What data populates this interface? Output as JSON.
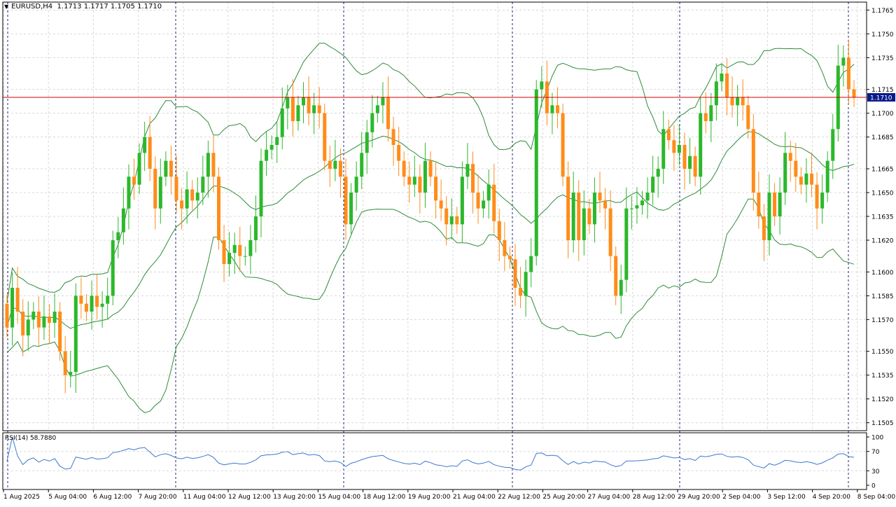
{
  "header": {
    "symbol": "EURUSD,H4",
    "open": "1.1713",
    "high": "1.1717",
    "low": "1.1705",
    "close": "1.1710"
  },
  "rsi": {
    "label": "RSI(14) 58.7880",
    "levels": [
      "100",
      "70",
      "30",
      "0"
    ]
  },
  "price_axis": [
    "1.1765",
    "1.1750",
    "1.1735",
    "1.1715",
    "1.1700",
    "1.1685",
    "1.1665",
    "1.1650",
    "1.1635",
    "1.1620",
    "1.1600",
    "1.1585",
    "1.1570",
    "1.1550",
    "1.1535",
    "1.1520",
    "1.1505"
  ],
  "current_price_label": "1.1710",
  "time_axis": [
    "1 Aug 2025",
    "5 Aug 04:00",
    "6 Aug 12:00",
    "7 Aug 20:00",
    "11 Aug 04:00",
    "12 Aug 12:00",
    "13 Aug 20:00",
    "15 Aug 04:00",
    "18 Aug 12:00",
    "19 Aug 20:00",
    "21 Aug 04:00",
    "22 Aug 12:00",
    "25 Aug 20:00",
    "27 Aug 04:00",
    "28 Aug 12:00",
    "29 Aug 20:00",
    "2 Sep 04:00",
    "3 Sep 12:00",
    "4 Sep 20:00",
    "8 Sep 04:00"
  ],
  "colors": {
    "bull": "#2bb82b",
    "bear": "#ff8c1a",
    "bands": "#2e8b3a",
    "price_line": "#d40000",
    "rsi": "#3a78d0",
    "grid": "#d8d8d8",
    "separator": "#1f2a7a",
    "price_label_bg": "#0a1a8a"
  },
  "chart_data": {
    "type": "candlestick",
    "symbol": "EURUSD",
    "timeframe": "H4",
    "y_range": [
      1.15,
      1.177
    ],
    "current_price": 1.171,
    "series_candles_closes": [
      1.1565,
      1.159,
      1.1575,
      1.156,
      1.157,
      1.1575,
      1.1565,
      1.1572,
      1.1568,
      1.1575,
      1.155,
      1.1535,
      1.1537,
      1.1585,
      1.158,
      1.1575,
      1.1585,
      1.1578,
      1.158,
      1.1585,
      1.162,
      1.1625,
      1.164,
      1.166,
      1.1655,
      1.1675,
      1.1685,
      1.1665,
      1.164,
      1.166,
      1.167,
      1.166,
      1.1645,
      1.164,
      1.1652,
      1.1645,
      1.165,
      1.166,
      1.1675,
      1.166,
      1.162,
      1.1605,
      1.1612,
      1.1617,
      1.161,
      1.161,
      1.162,
      1.1635,
      1.167,
      1.1677,
      1.168,
      1.1685,
      1.1703,
      1.171,
      1.1695,
      1.1705,
      1.171,
      1.17,
      1.1705,
      1.17,
      1.167,
      1.1665,
      1.167,
      1.166,
      1.163,
      1.165,
      1.166,
      1.1675,
      1.1688,
      1.17,
      1.1705,
      1.171,
      1.169,
      1.168,
      1.167,
      1.166,
      1.1655,
      1.166,
      1.165,
      1.167,
      1.166,
      1.1645,
      1.164,
      1.163,
      1.1635,
      1.163,
      1.166,
      1.1668,
      1.165,
      1.164,
      1.1645,
      1.1655,
      1.1632,
      1.162,
      1.161,
      1.1608,
      1.159,
      1.1585,
      1.16,
      1.161,
      1.1715,
      1.172,
      1.17,
      1.1705,
      1.17,
      1.166,
      1.162,
      1.165,
      1.162,
      1.164,
      1.163,
      1.165,
      1.1645,
      1.164,
      1.161,
      1.1585,
      1.1595,
      1.164,
      1.164,
      1.1642,
      1.1645,
      1.165,
      1.166,
      1.1665,
      1.169,
      1.1683,
      1.1675,
      1.168,
      1.1665,
      1.1673,
      1.166,
      1.17,
      1.1695,
      1.1705,
      1.172,
      1.1725,
      1.171,
      1.1705,
      1.171,
      1.1705,
      1.169,
      1.165,
      1.1635,
      1.162,
      1.165,
      1.1635,
      1.165,
      1.1675,
      1.167,
      1.166,
      1.1655,
      1.1662,
      1.1655,
      1.164,
      1.165,
      1.167,
      1.169,
      1.173,
      1.1735,
      1.1715,
      1.171
    ]
  }
}
